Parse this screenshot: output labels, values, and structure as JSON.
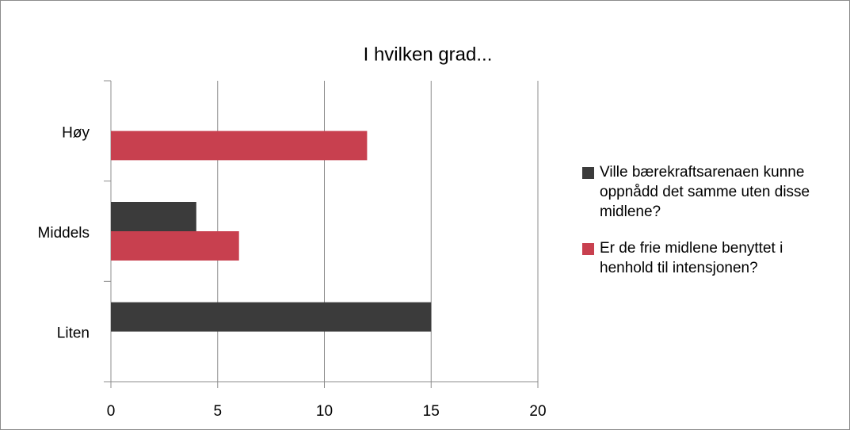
{
  "chart_data": {
    "type": "hbar",
    "title": "I hvilken grad...",
    "categories": [
      "Høy",
      "Middels",
      "Liten"
    ],
    "series": [
      {
        "name": "Ville bærekraftsarenaen kunne oppnådd det samme uten disse midlene?",
        "color": "#3b3b3b",
        "values": [
          0,
          4,
          15
        ]
      },
      {
        "name": "Er de frie midlene benyttet i henhold til intensjonen?",
        "color": "#c8404f",
        "values": [
          12,
          6,
          0
        ]
      }
    ],
    "xlim": [
      0,
      20
    ],
    "xticks": [
      0,
      5,
      10,
      15,
      20
    ],
    "grid": true,
    "legend": "right"
  }
}
